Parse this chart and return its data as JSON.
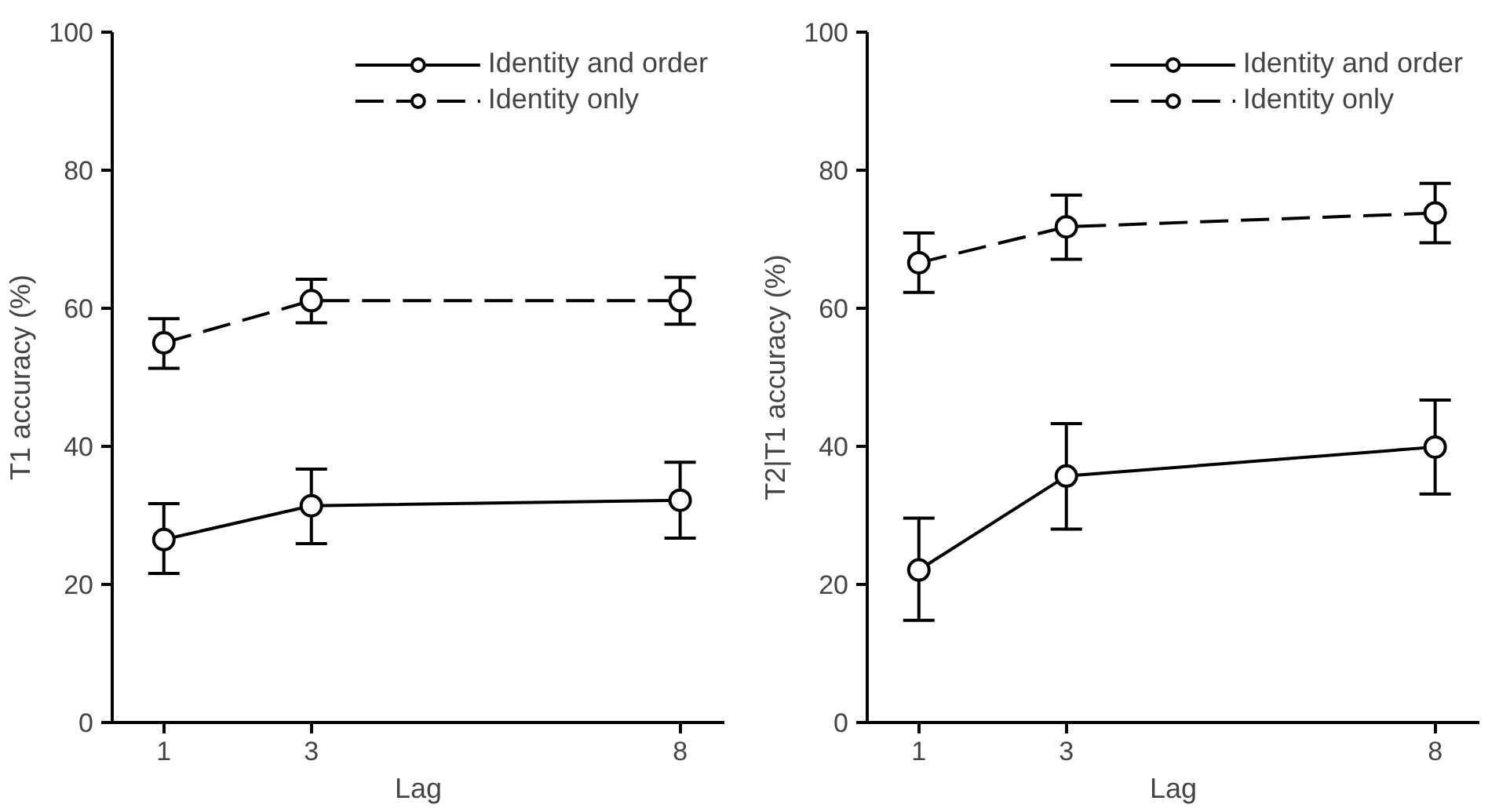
{
  "chart_data": [
    {
      "type": "line",
      "xlabel": "Lag",
      "ylabel": "T1 accuracy (%)",
      "x": [
        1,
        3,
        8
      ],
      "xlim": [
        0.3,
        8.6
      ],
      "xticks": [
        1,
        3,
        8
      ],
      "ylim": [
        0,
        100
      ],
      "yticks": [
        0,
        20,
        40,
        60,
        80,
        100
      ],
      "grid": false,
      "legend": "top right",
      "marker": "circle",
      "series": [
        {
          "name": "Identity and order",
          "color": "#000000",
          "line_style": "solid",
          "values": [
            26.5,
            31.4,
            32.2
          ],
          "errors": [
            [
              21.6,
              31.7
            ],
            [
              25.9,
              36.7
            ],
            [
              26.7,
              37.7
            ]
          ]
        },
        {
          "name": "Identity only",
          "color": "#000000",
          "line_style": "dashed",
          "values": [
            55.0,
            61.1,
            61.1
          ],
          "errors": [
            [
              51.3,
              58.5
            ],
            [
              57.9,
              64.2
            ],
            [
              57.7,
              64.5
            ]
          ]
        }
      ]
    },
    {
      "type": "line",
      "xlabel": "Lag",
      "ylabel": "T2|T1 accuracy (%)",
      "x": [
        1,
        3,
        8
      ],
      "xlim": [
        0.3,
        8.6
      ],
      "xticks": [
        1,
        3,
        8
      ],
      "ylim": [
        0,
        100
      ],
      "yticks": [
        0,
        20,
        40,
        60,
        80,
        100
      ],
      "grid": false,
      "legend": "top right",
      "marker": "circle",
      "series": [
        {
          "name": "Identity and order",
          "color": "#000000",
          "line_style": "solid",
          "values": [
            22.1,
            35.7,
            39.9
          ],
          "errors": [
            [
              14.8,
              29.6
            ],
            [
              28.0,
              43.3
            ],
            [
              33.1,
              46.7
            ]
          ]
        },
        {
          "name": "Identity only",
          "color": "#000000",
          "line_style": "dashed",
          "values": [
            66.6,
            71.8,
            73.8
          ],
          "errors": [
            [
              62.3,
              70.9
            ],
            [
              67.1,
              76.4
            ],
            [
              69.5,
              78.1
            ]
          ]
        }
      ]
    }
  ]
}
